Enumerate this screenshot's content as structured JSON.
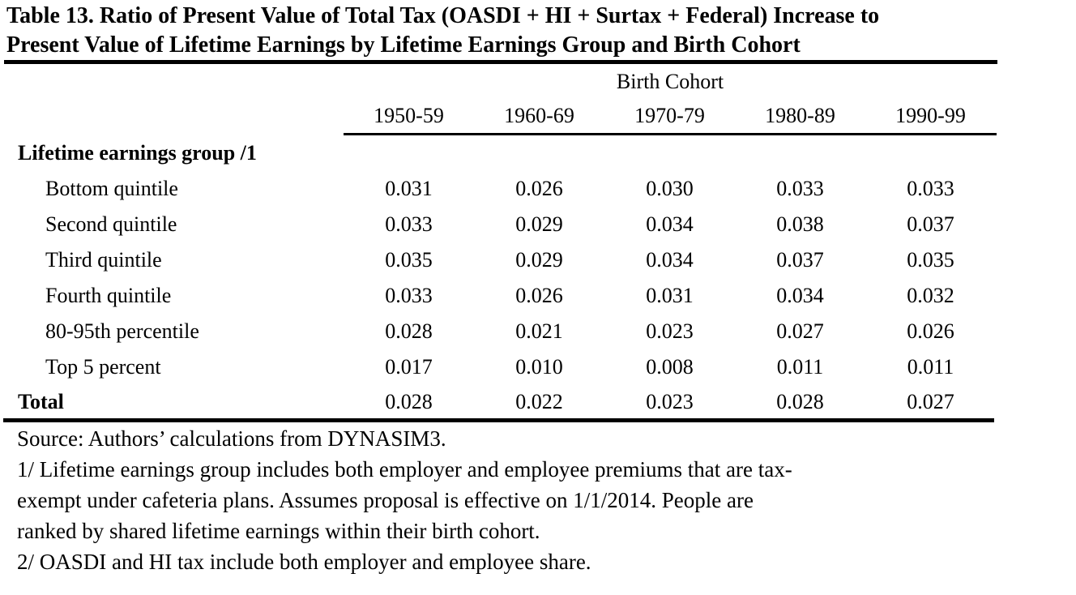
{
  "colors": {
    "text": "#000000",
    "background": "#ffffff"
  },
  "document": {
    "title_lines": [
      "Table 13. Ratio of Present Value of Total Tax (OASDI + HI + Surtax + Federal) Increase to",
      "Present Value of Lifetime Earnings by Lifetime Earnings Group and Birth Cohort"
    ]
  },
  "table": {
    "header": {
      "group_label": "Birth Cohort",
      "columns": [
        "1950-59",
        "1960-69",
        "1970-79",
        "1980-89",
        "1990-99"
      ]
    },
    "section_label": "Lifetime earnings group /1",
    "rows": [
      {
        "label": "Bottom quintile",
        "values": [
          "0.031",
          "0.026",
          "0.030",
          "0.033",
          "0.033"
        ]
      },
      {
        "label": "Second quintile",
        "values": [
          "0.033",
          "0.029",
          "0.034",
          "0.038",
          "0.037"
        ]
      },
      {
        "label": "Third quintile",
        "values": [
          "0.035",
          "0.029",
          "0.034",
          "0.037",
          "0.035"
        ]
      },
      {
        "label": "Fourth quintile",
        "values": [
          "0.033",
          "0.026",
          "0.031",
          "0.034",
          "0.032"
        ]
      },
      {
        "label": "80-95th percentile",
        "values": [
          "0.028",
          "0.021",
          "0.023",
          "0.027",
          "0.026"
        ]
      },
      {
        "label": "Top 5 percent",
        "values": [
          "0.017",
          "0.010",
          "0.008",
          "0.011",
          "0.011"
        ]
      }
    ],
    "total_row": {
      "label": "Total",
      "values": [
        "0.028",
        "0.022",
        "0.023",
        "0.028",
        "0.027"
      ]
    }
  },
  "notes": {
    "source": "Source: Authors’ calculations from DYNASIM3.",
    "footnote1_lines": [
      "1/ Lifetime earnings group includes both employer and employee premiums that are tax-",
      "exempt under cafeteria plans. Assumes proposal is effective on 1/1/2014. People are",
      "ranked by shared lifetime earnings within their birth cohort."
    ],
    "footnote2": "2/ OASDI and HI tax include both employer and employee share."
  }
}
